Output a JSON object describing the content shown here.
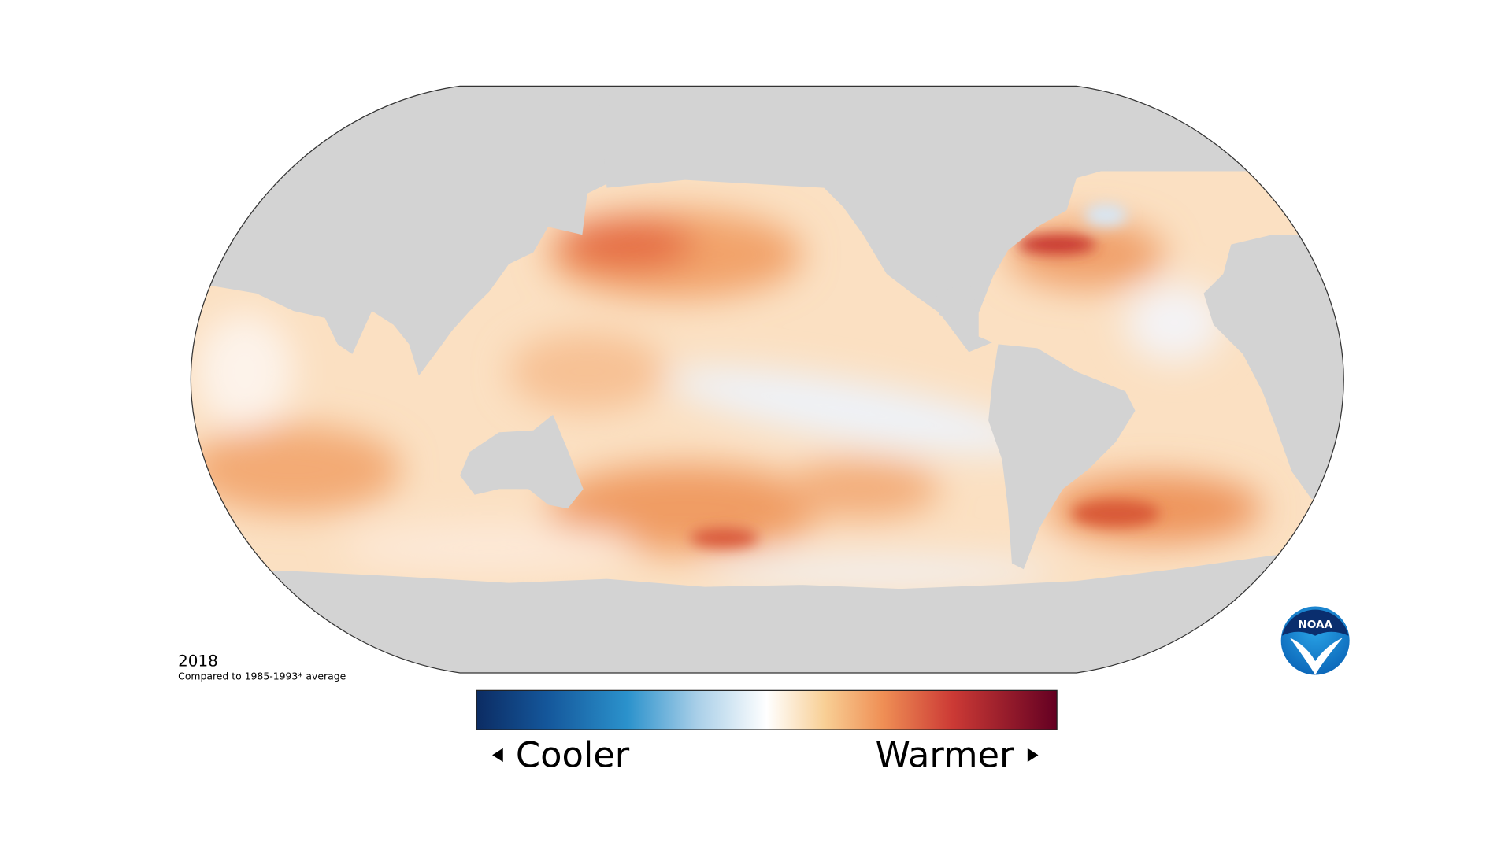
{
  "year": "2018",
  "caption": "Compared to 1985-1993* average",
  "legend": {
    "low": "Cooler",
    "high": "Warmer"
  },
  "logo": "NOAA"
}
